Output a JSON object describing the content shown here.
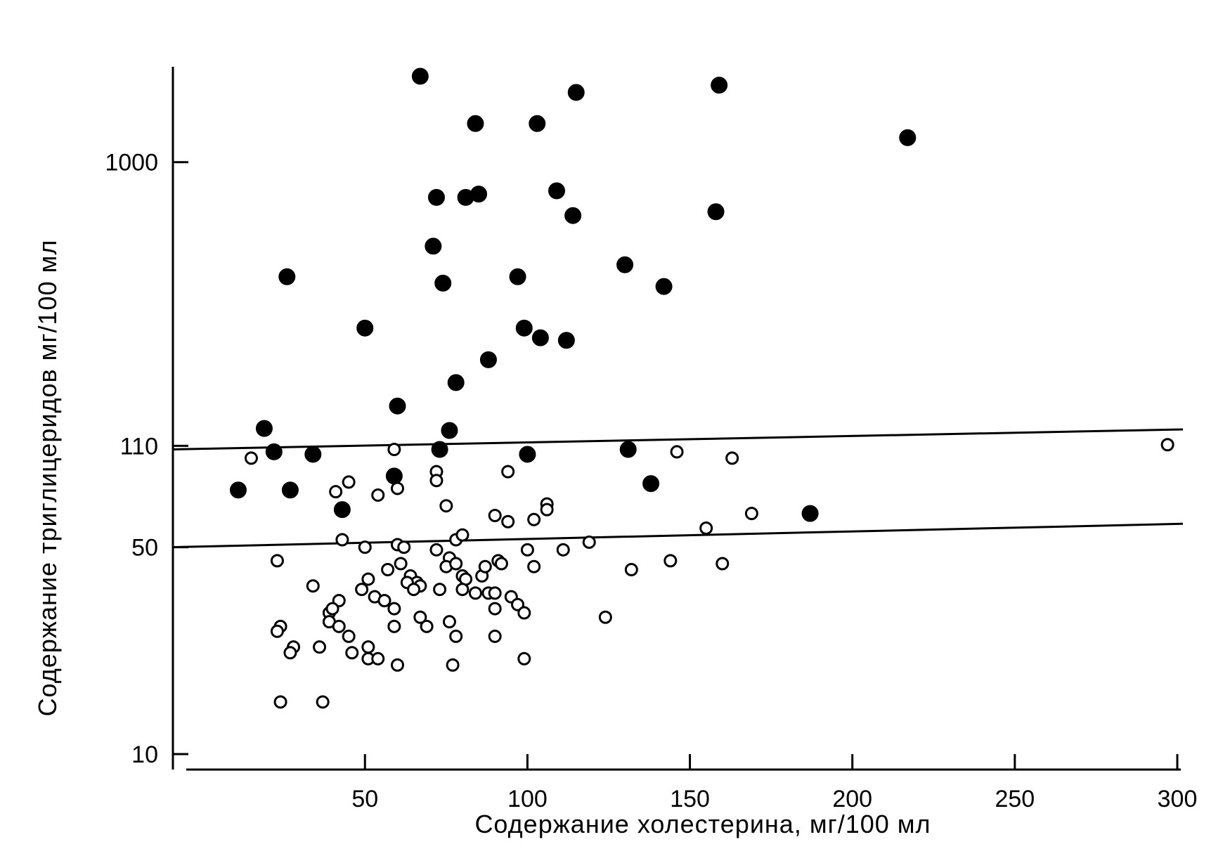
{
  "chart_data": {
    "type": "scatter",
    "xlabel": "Содержание холестерина, мг/100  мл",
    "ylabel": "Содержание триглицеридов мг/100 мл",
    "xlim": [
      -5,
      300
    ],
    "ylim": [
      10,
      2100
    ],
    "yscale": "log",
    "x_ticks": [
      50,
      100,
      150,
      200,
      250,
      300
    ],
    "x_tick_labels": [
      "50",
      "100",
      "150",
      "200",
      "250",
      "300"
    ],
    "y_ticks": [
      10,
      50,
      110,
      1000
    ],
    "y_tick_labels": [
      "10",
      "50",
      "110",
      "1000"
    ],
    "grid": false,
    "legend": "none",
    "series": [
      {
        "marker": "filled",
        "points": [
          [
            67,
            1950
          ],
          [
            115,
            1720
          ],
          [
            159,
            1820
          ],
          [
            84,
            1350
          ],
          [
            103,
            1350
          ],
          [
            217,
            1210
          ],
          [
            72,
            760
          ],
          [
            81,
            760
          ],
          [
            85,
            780
          ],
          [
            109,
            800
          ],
          [
            114,
            660
          ],
          [
            158,
            680
          ],
          [
            71,
            520
          ],
          [
            130,
            450
          ],
          [
            74,
            390
          ],
          [
            97,
            410
          ],
          [
            142,
            380
          ],
          [
            26,
            410
          ],
          [
            50,
            275
          ],
          [
            99,
            275
          ],
          [
            104,
            255
          ],
          [
            112,
            250
          ],
          [
            88,
            215
          ],
          [
            78,
            180
          ],
          [
            60,
            150
          ],
          [
            76,
            124
          ],
          [
            19,
            126
          ],
          [
            22,
            105
          ],
          [
            34,
            103
          ],
          [
            73,
            107
          ],
          [
            100,
            103
          ],
          [
            131,
            107
          ],
          [
            11,
            78
          ],
          [
            27,
            78
          ],
          [
            43,
            67
          ],
          [
            59,
            87
          ],
          [
            138,
            82
          ],
          [
            187,
            65
          ]
        ]
      },
      {
        "marker": "open",
        "points": [
          [
            15,
            100
          ],
          [
            59,
            107
          ],
          [
            146,
            105
          ],
          [
            163,
            100
          ],
          [
            297,
            111
          ],
          [
            94,
            90
          ],
          [
            72,
            90
          ],
          [
            72,
            84
          ],
          [
            45,
            83
          ],
          [
            41,
            77
          ],
          [
            54,
            75
          ],
          [
            60,
            79
          ],
          [
            75,
            69
          ],
          [
            106,
            70
          ],
          [
            106,
            67
          ],
          [
            90,
            64
          ],
          [
            94,
            61
          ],
          [
            102,
            62
          ],
          [
            169,
            65
          ],
          [
            43,
            53
          ],
          [
            50,
            50
          ],
          [
            60,
            51
          ],
          [
            62,
            50
          ],
          [
            72,
            49
          ],
          [
            78,
            53
          ],
          [
            80,
            55
          ],
          [
            119,
            52
          ],
          [
            155,
            58
          ],
          [
            23,
            45
          ],
          [
            34,
            37
          ],
          [
            57,
            42
          ],
          [
            61,
            44
          ],
          [
            64,
            40
          ],
          [
            66,
            38
          ],
          [
            67,
            37
          ],
          [
            76,
            46
          ],
          [
            80,
            40
          ],
          [
            81,
            39
          ],
          [
            86,
            40
          ],
          [
            87,
            43
          ],
          [
            91,
            45
          ],
          [
            92,
            44
          ],
          [
            51,
            39
          ],
          [
            49,
            36
          ],
          [
            53,
            34
          ],
          [
            56,
            33
          ],
          [
            59,
            31
          ],
          [
            63,
            38
          ],
          [
            65,
            36
          ],
          [
            75,
            43
          ],
          [
            78,
            44
          ],
          [
            100,
            49
          ],
          [
            102,
            43
          ],
          [
            111,
            49
          ],
          [
            132,
            42
          ],
          [
            144,
            45
          ],
          [
            160,
            44
          ],
          [
            42,
            33
          ],
          [
            39,
            30
          ],
          [
            40,
            31
          ],
          [
            39,
            28
          ],
          [
            42,
            27
          ],
          [
            24,
            27
          ],
          [
            23,
            26
          ],
          [
            28,
            23
          ],
          [
            27,
            22
          ],
          [
            36,
            23
          ],
          [
            45,
            25
          ],
          [
            46,
            22
          ],
          [
            51,
            23
          ],
          [
            51,
            21
          ],
          [
            54,
            21
          ],
          [
            59,
            27
          ],
          [
            67,
            29
          ],
          [
            69,
            27
          ],
          [
            76,
            28
          ],
          [
            78,
            25
          ],
          [
            90,
            25
          ],
          [
            73,
            36
          ],
          [
            80,
            36
          ],
          [
            84,
            35
          ],
          [
            88,
            35
          ],
          [
            90,
            35
          ],
          [
            95,
            34
          ],
          [
            97,
            32
          ],
          [
            90,
            31
          ],
          [
            99,
            30
          ],
          [
            124,
            29
          ],
          [
            24,
            15
          ],
          [
            37,
            15
          ],
          [
            60,
            20
          ],
          [
            77,
            20
          ],
          [
            99,
            21
          ]
        ]
      }
    ],
    "reference_lines": [
      {
        "x": [
          -5,
          300
        ],
        "y": [
          107,
          125
        ]
      },
      {
        "x": [
          -5,
          300
        ],
        "y": [
          50,
          60
        ]
      }
    ]
  }
}
